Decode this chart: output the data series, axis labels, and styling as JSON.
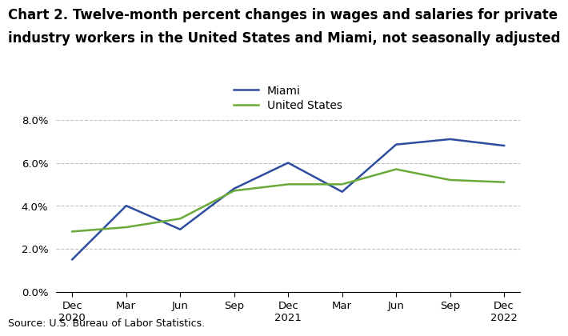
{
  "title_line1": "Chart 2. Twelve-month percent changes in wages and salaries for private",
  "title_line2": "industry workers in the United States and Miami, not seasonally adjusted",
  "x_labels": [
    "Dec\n2020",
    "Mar",
    "Jun",
    "Sep",
    "Dec\n2021",
    "Mar",
    "Jun",
    "Sep",
    "Dec\n2022"
  ],
  "miami_values": [
    1.5,
    4.0,
    2.9,
    4.8,
    6.0,
    4.65,
    6.85,
    7.1,
    6.8
  ],
  "us_values": [
    2.8,
    3.0,
    3.4,
    4.7,
    5.0,
    5.0,
    5.7,
    5.2,
    5.1
  ],
  "miami_color": "#2e4d9e",
  "us_color": "#6aaa3a",
  "ylim": [
    0.0,
    8.0
  ],
  "yticks": [
    0.0,
    2.0,
    4.0,
    6.0,
    8.0
  ],
  "source": "Source: U.S. Bureau of Labor Statistics.",
  "legend_miami": "Miami",
  "legend_us": "United States",
  "background_color": "#ffffff",
  "grid_color": "#c0c0c0",
  "title_fontsize": 12,
  "axis_fontsize": 9.5,
  "legend_fontsize": 10,
  "source_fontsize": 9
}
